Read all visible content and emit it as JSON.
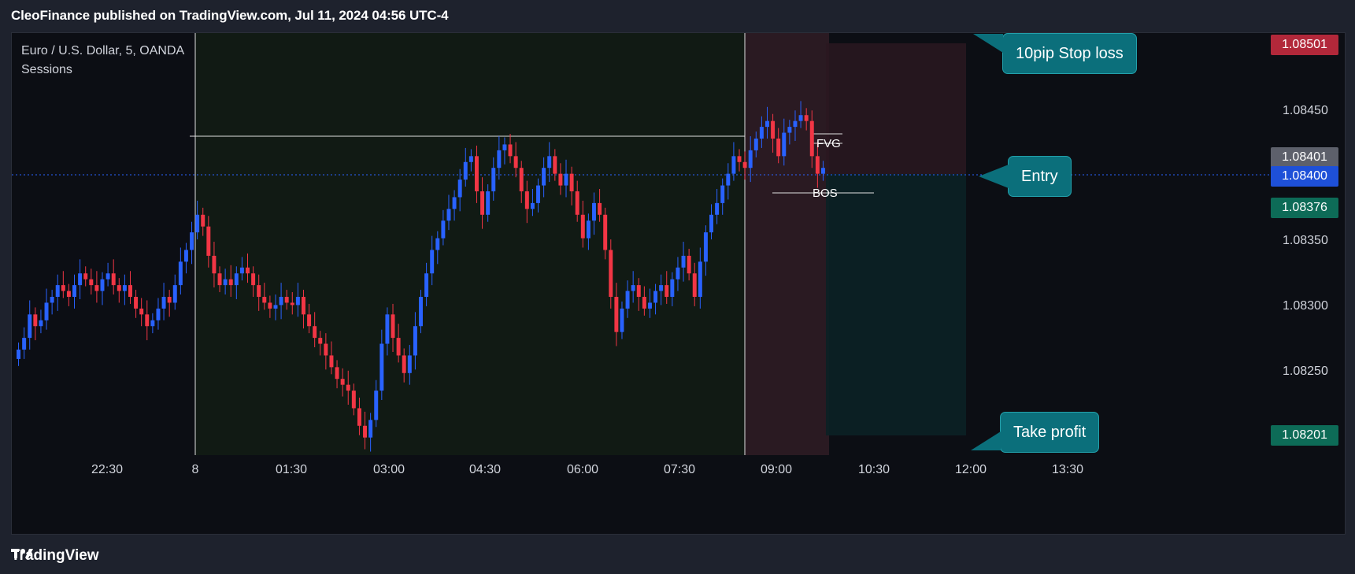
{
  "header": {
    "title": "CleoFinance published on TradingView.com, Jul 11, 2024 04:56 UTC-4"
  },
  "legend": {
    "symbol": "Euro / U.S. Dollar, 5, OANDA",
    "indicator": "Sessions"
  },
  "annotations": {
    "stop_loss": "10pip Stop loss",
    "entry": "Entry",
    "take_profit": "Take profit",
    "fvg": "FVG",
    "bos": "BOS"
  },
  "price_badges": {
    "stop_loss": "1.08501",
    "current_grey": "1.08401",
    "current_blue": "1.08400",
    "target_green": "1.08376",
    "take_profit": "1.08201"
  },
  "footer": {
    "brand": "TradingView"
  },
  "colors": {
    "up": "#2962ff",
    "down": "#f23645",
    "badge_red": "#b2283a",
    "badge_grey": "#5d606b",
    "badge_blue": "#1e50d8",
    "badge_green": "#0d6b57",
    "callout": "#0b6f7b"
  },
  "chart_data": {
    "type": "candlestick",
    "title": "Euro / U.S. Dollar, 5, OANDA",
    "y_ticks": [
      "1.08450",
      "1.08350",
      "1.08300",
      "1.08250"
    ],
    "x_ticks": [
      "22:30",
      "8",
      "01:30",
      "03:00",
      "04:30",
      "06:00",
      "07:30",
      "09:00",
      "10:30",
      "12:00",
      "13:30"
    ],
    "ylim": [
      1.08155,
      1.08515
    ],
    "levels": {
      "stop_loss": 1.08501,
      "entry": 1.084,
      "take_profit": 1.08201,
      "session_high": 1.08433,
      "bos": 1.08378,
      "fvg_top": 1.08432,
      "fvg_bottom": 1.0842
    },
    "close_series": [
      1.08245,
      1.08255,
      1.08275,
      1.08265,
      1.0827,
      1.08285,
      1.0829,
      1.083,
      1.08295,
      1.0829,
      1.083,
      1.0831,
      1.08305,
      1.083,
      1.08295,
      1.08305,
      1.0831,
      1.083,
      1.08295,
      1.083,
      1.0829,
      1.0828,
      1.08275,
      1.08265,
      1.0827,
      1.0828,
      1.0829,
      1.08285,
      1.083,
      1.0832,
      1.0833,
      1.08345,
      1.0836,
      1.0835,
      1.08325,
      1.0831,
      1.083,
      1.08305,
      1.083,
      1.0831,
      1.08315,
      1.0831,
      1.083,
      1.0829,
      1.08285,
      1.0828,
      1.08283,
      1.0829,
      1.08285,
      1.08283,
      1.0829,
      1.08275,
      1.08265,
      1.08255,
      1.0825,
      1.0824,
      1.0823,
      1.0822,
      1.08215,
      1.0821,
      1.08195,
      1.0818,
      1.0817,
      1.08185,
      1.0821,
      1.0825,
      1.08275,
      1.08255,
      1.0824,
      1.08225,
      1.0824,
      1.08265,
      1.0829,
      1.0831,
      1.0833,
      1.0834,
      1.08355,
      1.08365,
      1.08375,
      1.0839,
      1.08405,
      1.0841,
      1.0838,
      1.0836,
      1.0838,
      1.084,
      1.08415,
      1.0842,
      1.0841,
      1.084,
      1.0838,
      1.08365,
      1.0837,
      1.08385,
      1.084,
      1.0841,
      1.08395,
      1.08385,
      1.08395,
      1.0838,
      1.0836,
      1.0834,
      1.08355,
      1.0837,
      1.0836,
      1.0833,
      1.0829,
      1.0826,
      1.0828,
      1.08295,
      1.083,
      1.0829,
      1.0828,
      1.08285,
      1.08295,
      1.083,
      1.0829,
      1.08305,
      1.08315,
      1.08325,
      1.0831,
      1.0829,
      1.0832,
      1.08345,
      1.0836,
      1.0837,
      1.08385,
      1.08395,
      1.0841,
      1.08405,
      1.084,
      1.08415,
      1.08425,
      1.08435,
      1.0844,
      1.08425,
      1.0841,
      1.0843,
      1.08435,
      1.0844,
      1.08445,
      1.0844,
      1.0841,
      1.08395,
      1.084
    ]
  }
}
